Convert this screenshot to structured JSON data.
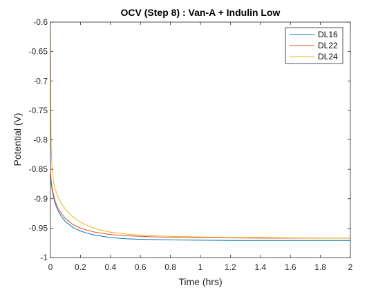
{
  "chart_data": {
    "type": "line",
    "title": "OCV (Step 8) : Van-A + Indulin Low",
    "xlabel": "Time (hrs)",
    "ylabel": "Potential (V)",
    "xlim": [
      0,
      2
    ],
    "ylim": [
      -1,
      -0.6
    ],
    "xticks": [
      0,
      0.2,
      0.4,
      0.6,
      0.8,
      1,
      1.2,
      1.4,
      1.6,
      1.8,
      2
    ],
    "xtick_labels": [
      "0",
      "0.2",
      "0.4",
      "0.6",
      "0.8",
      "1",
      "1.2",
      "1.4",
      "1.6",
      "1.8",
      "2"
    ],
    "yticks": [
      -1,
      -0.95,
      -0.9,
      -0.85,
      -0.8,
      -0.75,
      -0.7,
      -0.65,
      -0.6
    ],
    "ytick_labels": [
      "-1",
      "-0.95",
      "-0.9",
      "-0.85",
      "-0.8",
      "-0.75",
      "-0.7",
      "-0.65",
      "-0.6"
    ],
    "grid": false,
    "legend_position": "top-right",
    "series": [
      {
        "name": "DL16",
        "color": "#0072BD",
        "x": [
          0,
          0.005,
          0.01,
          0.02,
          0.03,
          0.05,
          0.075,
          0.1,
          0.15,
          0.2,
          0.25,
          0.3,
          0.4,
          0.5,
          0.6,
          0.7,
          0.8,
          1.0,
          1.2,
          1.4,
          1.6,
          1.8,
          2.0
        ],
        "y": [
          -0.86,
          -0.873,
          -0.883,
          -0.897,
          -0.907,
          -0.92,
          -0.931,
          -0.939,
          -0.949,
          -0.955,
          -0.959,
          -0.962,
          -0.966,
          -0.968,
          -0.969,
          -0.9695,
          -0.97,
          -0.9705,
          -0.971,
          -0.971,
          -0.971,
          -0.971,
          -0.971
        ]
      },
      {
        "name": "DL22",
        "color": "#D95319",
        "x": [
          0,
          0.005,
          0.01,
          0.02,
          0.03,
          0.05,
          0.075,
          0.1,
          0.15,
          0.2,
          0.25,
          0.3,
          0.4,
          0.5,
          0.6,
          0.7,
          0.8,
          1.0,
          1.2,
          1.4,
          1.6,
          1.8,
          2.0
        ],
        "y": [
          -0.855,
          -0.869,
          -0.879,
          -0.893,
          -0.903,
          -0.916,
          -0.926,
          -0.934,
          -0.944,
          -0.95,
          -0.954,
          -0.957,
          -0.961,
          -0.963,
          -0.964,
          -0.965,
          -0.9655,
          -0.966,
          -0.9665,
          -0.967,
          -0.967,
          -0.967,
          -0.967
        ]
      },
      {
        "name": "DL24",
        "color": "#EDB120",
        "x": [
          0,
          0.002,
          0.005,
          0.01,
          0.02,
          0.03,
          0.05,
          0.075,
          0.1,
          0.15,
          0.2,
          0.25,
          0.3,
          0.4,
          0.5,
          0.6,
          0.7,
          0.8,
          1.0,
          1.2,
          1.4,
          1.6,
          1.8,
          2.0
        ],
        "y": [
          -0.62,
          -0.74,
          -0.81,
          -0.845,
          -0.87,
          -0.882,
          -0.897,
          -0.909,
          -0.918,
          -0.931,
          -0.94,
          -0.946,
          -0.951,
          -0.957,
          -0.96,
          -0.962,
          -0.963,
          -0.964,
          -0.965,
          -0.966,
          -0.966,
          -0.9665,
          -0.967,
          -0.967
        ]
      }
    ]
  }
}
